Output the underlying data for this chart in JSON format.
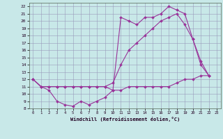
{
  "xlabel": "Windchill (Refroidissement éolien,°C)",
  "bg_color": "#c8e8e8",
  "grid_color": "#9999bb",
  "line_color": "#993399",
  "xlim": [
    -0.5,
    23.5
  ],
  "ylim": [
    8,
    22.5
  ],
  "xticks": [
    0,
    1,
    2,
    3,
    4,
    5,
    6,
    7,
    8,
    9,
    10,
    11,
    12,
    13,
    14,
    15,
    16,
    17,
    18,
    19,
    20,
    21,
    22,
    23
  ],
  "yticks": [
    8,
    9,
    10,
    11,
    12,
    13,
    14,
    15,
    16,
    17,
    18,
    19,
    20,
    21,
    22
  ],
  "curve1_x": [
    0,
    1,
    2,
    3,
    4,
    5,
    6,
    7,
    8,
    9,
    10,
    11,
    12,
    13,
    14,
    15,
    16,
    17,
    18,
    19,
    20,
    21,
    22
  ],
  "curve1_y": [
    12,
    11,
    10.5,
    9,
    8.5,
    8.3,
    9,
    8.5,
    9,
    9.5,
    10.5,
    10.5,
    11,
    11,
    11,
    11,
    11,
    11,
    11.5,
    12,
    12,
    12.5,
    12.5
  ],
  "curve2_x": [
    0,
    1,
    2,
    3,
    4,
    5,
    6,
    7,
    8,
    9,
    10,
    11,
    12,
    13,
    14,
    15,
    16,
    17,
    18,
    19,
    20,
    21,
    22
  ],
  "curve2_y": [
    12,
    11,
    11,
    11,
    11,
    11,
    11,
    11,
    11,
    11,
    11.5,
    14,
    16,
    17,
    18,
    19,
    20,
    20.5,
    21,
    19.5,
    17.5,
    14,
    12.5
  ],
  "curve3_x": [
    0,
    1,
    2,
    3,
    4,
    5,
    6,
    7,
    8,
    9,
    10,
    11,
    12,
    13,
    14,
    15,
    16,
    17,
    18,
    19,
    20,
    21,
    22
  ],
  "curve3_y": [
    12,
    11,
    11,
    11,
    11,
    11,
    11,
    11,
    11,
    11,
    10.5,
    20.5,
    20,
    19.5,
    20.5,
    20.5,
    21,
    22,
    21.5,
    21,
    17.5,
    14.5,
    12.5
  ]
}
